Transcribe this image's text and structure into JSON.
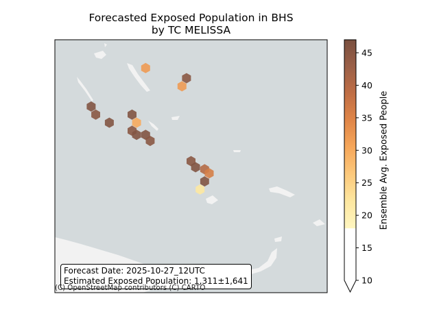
{
  "chart_data": {
    "type": "heatmap",
    "title": [
      "Forecasted Exposed Population in BHS",
      "by TC MELISSA"
    ],
    "colorbar": {
      "label": "Ensemble Avg. Exposed People",
      "ticks": [
        10,
        15,
        20,
        25,
        30,
        35,
        40,
        45
      ],
      "range": [
        10,
        47
      ],
      "threshold": 18,
      "extend": "min",
      "colors": [
        "#fff6c0",
        "#fde7a0",
        "#fcc97c",
        "#f6a75a",
        "#e08648",
        "#c06e45",
        "#9b6048",
        "#7a5040"
      ]
    },
    "cells": [
      {
        "lon": -77.0,
        "lat": 26.55,
        "value": 32
      },
      {
        "lon": -76.1,
        "lat": 26.3,
        "value": 45
      },
      {
        "lon": -76.2,
        "lat": 26.1,
        "value": 32
      },
      {
        "lon": -78.2,
        "lat": 25.6,
        "value": 46
      },
      {
        "lon": -78.1,
        "lat": 25.4,
        "value": 45
      },
      {
        "lon": -77.8,
        "lat": 25.2,
        "value": 46
      },
      {
        "lon": -77.3,
        "lat": 25.4,
        "value": 46
      },
      {
        "lon": -77.2,
        "lat": 25.2,
        "value": 30
      },
      {
        "lon": -77.3,
        "lat": 25.0,
        "value": 45
      },
      {
        "lon": -77.2,
        "lat": 24.9,
        "value": 46
      },
      {
        "lon": -77.0,
        "lat": 24.9,
        "value": 46
      },
      {
        "lon": -76.9,
        "lat": 24.75,
        "value": 45
      },
      {
        "lon": -76.0,
        "lat": 24.25,
        "value": 45
      },
      {
        "lon": -75.9,
        "lat": 24.1,
        "value": 46
      },
      {
        "lon": -75.7,
        "lat": 24.05,
        "value": 40
      },
      {
        "lon": -75.6,
        "lat": 23.95,
        "value": 36
      },
      {
        "lon": -75.7,
        "lat": 23.75,
        "value": 46
      },
      {
        "lon": -75.8,
        "lat": 23.55,
        "value": 22
      }
    ]
  },
  "info_box": {
    "forecast_date": "Forecast Date: 2025-10-27_12UTC",
    "exposed_population": "Estimated Exposed Population: 1,311±1,641"
  },
  "attribution": "(C) OpenStreetMap contributors (C) CARTO",
  "colors": {
    "ocean": "#d4dadc",
    "land": "#f2f2f2"
  }
}
